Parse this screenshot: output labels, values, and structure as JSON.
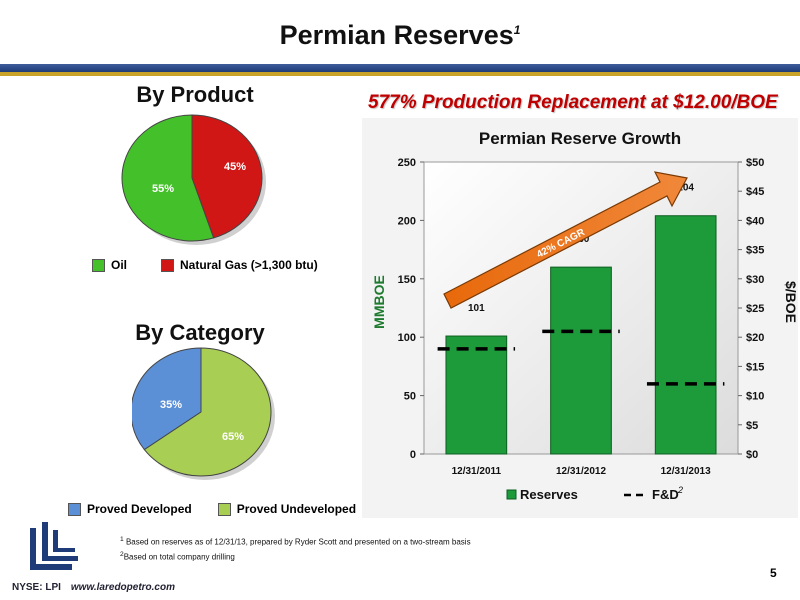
{
  "title": "Permian Reserves",
  "title_sup": "1",
  "headline": "577% Production Replacement at $12.00/BOE",
  "by_product": {
    "heading": "By Product",
    "slices": [
      {
        "label": "Oil",
        "value": 55,
        "pct": "55%",
        "color": "#44c02a"
      },
      {
        "label": "Natural Gas (>1,300 btu)",
        "value": 45,
        "pct": "45%",
        "color": "#d11616"
      }
    ]
  },
  "by_category": {
    "heading": "By Category",
    "slices": [
      {
        "label": "Proved Developed",
        "value": 35,
        "pct": "35%",
        "color": "#5b8fd6"
      },
      {
        "label": "Proved Undeveloped",
        "value": 65,
        "pct": "65%",
        "color": "#a8cf54"
      }
    ]
  },
  "chart_data": {
    "type": "bar",
    "title": "Permian Reserve Growth",
    "categories": [
      "12/31/2011",
      "12/31/2012",
      "12/31/2013"
    ],
    "series": [
      {
        "name": "Reserves",
        "values": [
          101,
          160,
          204
        ],
        "labels": [
          "101",
          "160",
          "204"
        ],
        "color": "#1d9a3a",
        "axis": "left"
      },
      {
        "name": "F&D",
        "name_sup": "2",
        "values": [
          18,
          21,
          12
        ],
        "type": "dashed-line",
        "axis": "right"
      }
    ],
    "ylabel": "MMBOE",
    "ylim": [
      0,
      250
    ],
    "yticks": [
      "0",
      "50",
      "100",
      "150",
      "200",
      "250"
    ],
    "y2label": "$/BOE",
    "y2lim": [
      0,
      50
    ],
    "y2ticks": [
      "$0",
      "$5",
      "$10",
      "$15",
      "$20",
      "$25",
      "$30",
      "$35",
      "$40",
      "$45",
      "$50"
    ],
    "annotation": "42% CAGR",
    "legend": "bottom"
  },
  "footnotes": [
    {
      "sup": "1",
      "text": "Based on reserves as of 12/31/13, prepared by Ryder Scott and presented on a two-stream basis"
    },
    {
      "sup": "2",
      "text": "Based on total company drilling"
    }
  ],
  "footer": {
    "ticker": "NYSE: LPI",
    "url": "www.laredopetro.com",
    "page": "5"
  }
}
